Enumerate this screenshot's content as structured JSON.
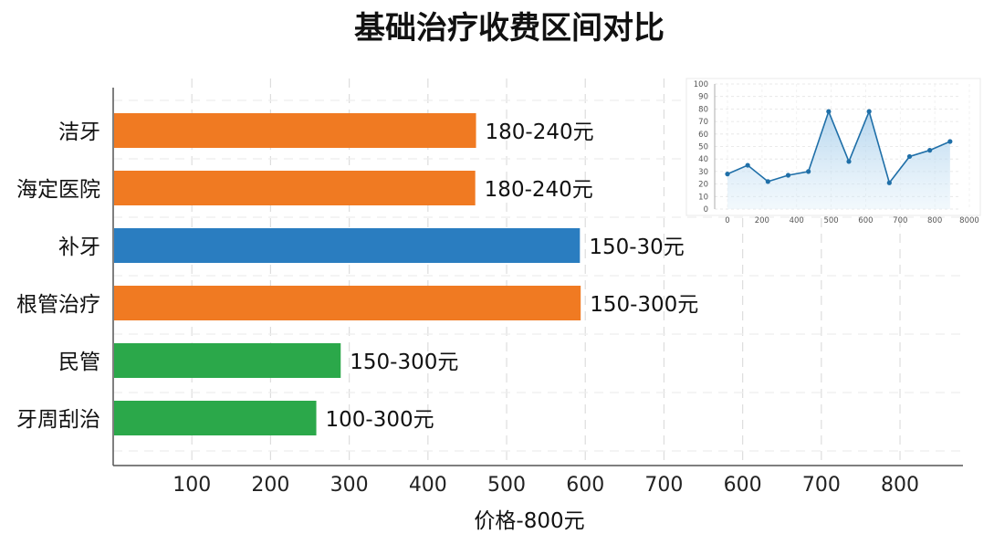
{
  "chart_data": [
    {
      "type": "bar",
      "orientation": "horizontal",
      "title": "基础治疗收费区间对比",
      "xlabel": "价格-800元",
      "ylabel": "",
      "categories": [
        "洁牙",
        "海定医院",
        "补牙",
        "根管治疗",
        "民管",
        "牙周刮治"
      ],
      "values": [
        460,
        459,
        592,
        593,
        288,
        257
      ],
      "value_labels": [
        "180-240元",
        "180-240元",
        "150-30元",
        "150-300元",
        "150-300元",
        "100-300元"
      ],
      "bar_colors": [
        "#F07A22",
        "#F07A22",
        "#2A7DC0",
        "#F07A22",
        "#2BA84A",
        "#2BA84A"
      ],
      "x_ticks": [
        "100",
        "200",
        "300",
        "400",
        "500",
        "600",
        "700",
        "600",
        "700",
        "800"
      ],
      "xlim": [
        0,
        1080
      ],
      "grid": true,
      "legend": "none"
    },
    {
      "type": "area",
      "title": "",
      "xlabel": "",
      "ylabel": "",
      "x": [
        0,
        100,
        200,
        300,
        400,
        500,
        600,
        700,
        800,
        900,
        1000,
        1100
      ],
      "y": [
        28,
        35,
        22,
        27,
        30,
        78,
        38,
        78,
        21,
        42,
        47,
        54
      ],
      "x_ticks": [
        "0",
        "200",
        "400",
        "500",
        "600",
        "700",
        "800",
        "8000"
      ],
      "y_ticks": [
        "0",
        "10",
        "20",
        "30",
        "40",
        "50",
        "60",
        "70",
        "80",
        "90",
        "100"
      ],
      "ylim": [
        0,
        100
      ],
      "color": "#1F6FA8",
      "grid": true,
      "legend": "none"
    }
  ]
}
